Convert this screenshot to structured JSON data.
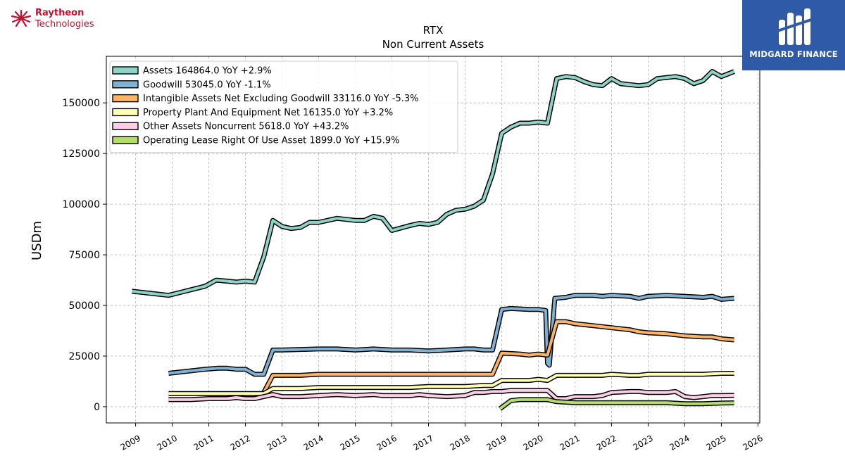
{
  "branding": {
    "left_logo_line1": "Raytheon",
    "left_logo_line2": "Technologies",
    "right_logo_text": "MIDGARD FINANCE",
    "left_logo_color": "#c8102e",
    "right_logo_bg": "#2f5aa8"
  },
  "chart_data": {
    "type": "line",
    "title": "RTX",
    "subtitle": "Non Current  Assets",
    "xlabel": "",
    "ylabel": "USDm",
    "xlim": [
      2008.2,
      2026.05
    ],
    "ylim": [
      -8000,
      173000
    ],
    "x_ticks": [
      "2009",
      "2010",
      "2011",
      "2012",
      "2013",
      "2014",
      "2015",
      "2016",
      "2017",
      "2018",
      "2019",
      "2020",
      "2021",
      "2022",
      "2023",
      "2024",
      "2025",
      "2026"
    ],
    "y_ticks": [
      0,
      25000,
      50000,
      75000,
      100000,
      125000,
      150000
    ],
    "grid": true,
    "legend_position": "top-left",
    "series": [
      {
        "name": "Assets  164864.0 YoY +2.9%",
        "color": "#8dd3c7",
        "points": [
          [
            2008.9,
            57000
          ],
          [
            2009.9,
            55000
          ],
          [
            2010.9,
            59500
          ],
          [
            2011.2,
            62500
          ],
          [
            2011.5,
            62000
          ],
          [
            2011.75,
            61500
          ],
          [
            2012.0,
            62000
          ],
          [
            2012.25,
            61500
          ],
          [
            2012.5,
            74000
          ],
          [
            2012.75,
            92000
          ],
          [
            2013.0,
            89000
          ],
          [
            2013.25,
            88000
          ],
          [
            2013.5,
            88500
          ],
          [
            2013.75,
            91000
          ],
          [
            2014.0,
            91000
          ],
          [
            2014.5,
            93000
          ],
          [
            2015.0,
            92000
          ],
          [
            2015.25,
            92000
          ],
          [
            2015.5,
            94000
          ],
          [
            2015.75,
            93000
          ],
          [
            2016.0,
            87000
          ],
          [
            2016.5,
            89500
          ],
          [
            2016.75,
            90500
          ],
          [
            2017.0,
            90000
          ],
          [
            2017.25,
            91000
          ],
          [
            2017.5,
            95000
          ],
          [
            2017.75,
            97000
          ],
          [
            2018.0,
            97500
          ],
          [
            2018.25,
            99000
          ],
          [
            2018.5,
            102000
          ],
          [
            2018.75,
            115000
          ],
          [
            2019.0,
            135000
          ],
          [
            2019.25,
            138000
          ],
          [
            2019.5,
            140000
          ],
          [
            2019.75,
            140000
          ],
          [
            2020.0,
            140500
          ],
          [
            2020.25,
            140000
          ],
          [
            2020.5,
            162000
          ],
          [
            2020.75,
            163000
          ],
          [
            2021.0,
            162500
          ],
          [
            2021.25,
            160500
          ],
          [
            2021.5,
            159000
          ],
          [
            2021.75,
            158500
          ],
          [
            2022.0,
            162000
          ],
          [
            2022.25,
            159500
          ],
          [
            2022.5,
            159000
          ],
          [
            2022.75,
            158500
          ],
          [
            2023.0,
            159000
          ],
          [
            2023.25,
            162000
          ],
          [
            2023.5,
            162500
          ],
          [
            2023.75,
            163000
          ],
          [
            2024.0,
            162000
          ],
          [
            2024.25,
            159500
          ],
          [
            2024.5,
            161000
          ],
          [
            2024.75,
            165500
          ],
          [
            2025.0,
            163000
          ],
          [
            2025.35,
            165500
          ]
        ]
      },
      {
        "name": "Goodwill  53045.0 YoY -1.1%",
        "color": "#80b1d3",
        "points": [
          [
            2009.9,
            16500
          ],
          [
            2010.9,
            18500
          ],
          [
            2011.25,
            19000
          ],
          [
            2011.5,
            19000
          ],
          [
            2011.75,
            18500
          ],
          [
            2012.0,
            18500
          ],
          [
            2012.25,
            16000
          ],
          [
            2012.5,
            16000
          ],
          [
            2012.75,
            28000
          ],
          [
            2013.0,
            28000
          ],
          [
            2014.0,
            28500
          ],
          [
            2014.5,
            28500
          ],
          [
            2015.0,
            28000
          ],
          [
            2015.5,
            28500
          ],
          [
            2016.0,
            28000
          ],
          [
            2016.5,
            28000
          ],
          [
            2017.0,
            27500
          ],
          [
            2017.5,
            28000
          ],
          [
            2018.0,
            28500
          ],
          [
            2018.25,
            28500
          ],
          [
            2018.5,
            28000
          ],
          [
            2018.75,
            28000
          ],
          [
            2019.0,
            48000
          ],
          [
            2019.25,
            48500
          ],
          [
            2019.75,
            48000
          ],
          [
            2020.0,
            48000
          ],
          [
            2020.2,
            47500
          ],
          [
            2020.25,
            21500
          ],
          [
            2020.3,
            20500
          ],
          [
            2020.45,
            53500
          ],
          [
            2020.75,
            54000
          ],
          [
            2021.0,
            55000
          ],
          [
            2021.5,
            55000
          ],
          [
            2021.75,
            54500
          ],
          [
            2022.0,
            55000
          ],
          [
            2022.5,
            54500
          ],
          [
            2022.75,
            53500
          ],
          [
            2023.0,
            54500
          ],
          [
            2023.5,
            55000
          ],
          [
            2024.0,
            54500
          ],
          [
            2024.5,
            54000
          ],
          [
            2024.75,
            54500
          ],
          [
            2025.0,
            53000
          ],
          [
            2025.35,
            53500
          ]
        ]
      },
      {
        "name": "Intangible Assets Net Excluding Goodwill  33116.0 YoY -5.3%",
        "color": "#fdb462",
        "points": [
          [
            2012.5,
            7000
          ],
          [
            2012.75,
            15500
          ],
          [
            2013.0,
            15500
          ],
          [
            2013.5,
            15500
          ],
          [
            2014.0,
            16000
          ],
          [
            2014.5,
            16000
          ],
          [
            2015.0,
            16000
          ],
          [
            2015.5,
            16000
          ],
          [
            2016.0,
            16000
          ],
          [
            2016.5,
            16000
          ],
          [
            2017.0,
            16000
          ],
          [
            2017.5,
            16000
          ],
          [
            2018.0,
            16000
          ],
          [
            2018.5,
            16000
          ],
          [
            2018.75,
            16000
          ],
          [
            2019.0,
            26500
          ],
          [
            2019.5,
            26000
          ],
          [
            2019.75,
            25500
          ],
          [
            2020.0,
            26000
          ],
          [
            2020.25,
            25500
          ],
          [
            2020.5,
            42000
          ],
          [
            2020.75,
            42000
          ],
          [
            2021.0,
            41000
          ],
          [
            2021.5,
            40000
          ],
          [
            2022.0,
            39000
          ],
          [
            2022.5,
            38000
          ],
          [
            2022.75,
            37000
          ],
          [
            2023.0,
            36500
          ],
          [
            2023.5,
            36000
          ],
          [
            2024.0,
            35000
          ],
          [
            2024.5,
            34500
          ],
          [
            2024.75,
            34500
          ],
          [
            2025.0,
            33500
          ],
          [
            2025.35,
            33000
          ]
        ]
      },
      {
        "name": "Property Plant And Equipment Net  16135.0 YoY +3.2%",
        "color": "#ffffb3",
        "points": [
          [
            2009.9,
            6500
          ],
          [
            2010.5,
            6500
          ],
          [
            2011.0,
            6500
          ],
          [
            2011.5,
            6500
          ],
          [
            2012.0,
            6500
          ],
          [
            2012.5,
            6500
          ],
          [
            2012.75,
            9000
          ],
          [
            2013.0,
            9000
          ],
          [
            2013.5,
            9000
          ],
          [
            2014.0,
            9500
          ],
          [
            2014.5,
            9500
          ],
          [
            2015.0,
            9500
          ],
          [
            2015.5,
            9500
          ],
          [
            2016.0,
            9500
          ],
          [
            2016.5,
            9500
          ],
          [
            2017.0,
            10000
          ],
          [
            2017.5,
            10000
          ],
          [
            2018.0,
            10000
          ],
          [
            2018.5,
            10500
          ],
          [
            2018.75,
            10500
          ],
          [
            2019.0,
            13000
          ],
          [
            2019.5,
            13000
          ],
          [
            2019.75,
            13000
          ],
          [
            2020.0,
            13500
          ],
          [
            2020.25,
            13000
          ],
          [
            2020.5,
            15500
          ],
          [
            2020.75,
            15500
          ],
          [
            2021.0,
            15500
          ],
          [
            2021.5,
            15500
          ],
          [
            2021.75,
            15500
          ],
          [
            2022.0,
            16000
          ],
          [
            2022.5,
            15500
          ],
          [
            2022.75,
            15500
          ],
          [
            2023.0,
            16000
          ],
          [
            2023.5,
            16000
          ],
          [
            2024.0,
            16000
          ],
          [
            2024.5,
            16000
          ],
          [
            2025.0,
            16500
          ],
          [
            2025.35,
            16500
          ]
        ]
      },
      {
        "name": "Other Assets Noncurrent  5618.0 YoY +43.2%",
        "color": "#fccde5",
        "points": [
          [
            2009.9,
            3500
          ],
          [
            2010.5,
            3500
          ],
          [
            2011.0,
            4000
          ],
          [
            2011.5,
            4000
          ],
          [
            2011.75,
            4500
          ],
          [
            2012.0,
            4000
          ],
          [
            2012.25,
            4000
          ],
          [
            2012.5,
            5000
          ],
          [
            2012.75,
            6000
          ],
          [
            2013.0,
            5000
          ],
          [
            2013.5,
            5000
          ],
          [
            2014.0,
            5500
          ],
          [
            2014.5,
            6000
          ],
          [
            2015.0,
            5500
          ],
          [
            2015.5,
            6000
          ],
          [
            2015.75,
            5500
          ],
          [
            2016.0,
            5500
          ],
          [
            2016.5,
            5500
          ],
          [
            2016.75,
            6000
          ],
          [
            2017.0,
            5500
          ],
          [
            2017.5,
            5000
          ],
          [
            2018.0,
            5500
          ],
          [
            2018.25,
            7000
          ],
          [
            2018.5,
            7000
          ],
          [
            2018.75,
            7500
          ],
          [
            2019.0,
            7500
          ],
          [
            2019.25,
            8000
          ],
          [
            2019.5,
            8000
          ],
          [
            2020.0,
            8000
          ],
          [
            2020.25,
            8000
          ],
          [
            2020.5,
            4000
          ],
          [
            2020.75,
            4000
          ],
          [
            2021.0,
            5000
          ],
          [
            2021.5,
            5000
          ],
          [
            2021.75,
            5500
          ],
          [
            2022.0,
            7000
          ],
          [
            2022.5,
            7500
          ],
          [
            2022.75,
            7500
          ],
          [
            2023.0,
            7000
          ],
          [
            2023.5,
            7000
          ],
          [
            2023.75,
            7500
          ],
          [
            2024.0,
            5000
          ],
          [
            2024.25,
            4500
          ],
          [
            2024.5,
            5000
          ],
          [
            2024.75,
            5500
          ],
          [
            2025.0,
            5500
          ],
          [
            2025.35,
            5600
          ]
        ]
      },
      {
        "name": "Operating Lease Right Of Use Asset  1899.0 YoY +15.9%",
        "color": "#b3de69",
        "points": [
          [
            2018.95,
            -1000
          ],
          [
            2019.25,
            3000
          ],
          [
            2019.5,
            3500
          ],
          [
            2020.0,
            3500
          ],
          [
            2020.25,
            3500
          ],
          [
            2020.5,
            2500
          ],
          [
            2021.0,
            2000
          ],
          [
            2021.5,
            2000
          ],
          [
            2022.0,
            2000
          ],
          [
            2022.5,
            2000
          ],
          [
            2023.0,
            2000
          ],
          [
            2023.5,
            2000
          ],
          [
            2024.0,
            1500
          ],
          [
            2024.5,
            1500
          ],
          [
            2025.0,
            1800
          ],
          [
            2025.35,
            1900
          ]
        ]
      }
    ]
  }
}
